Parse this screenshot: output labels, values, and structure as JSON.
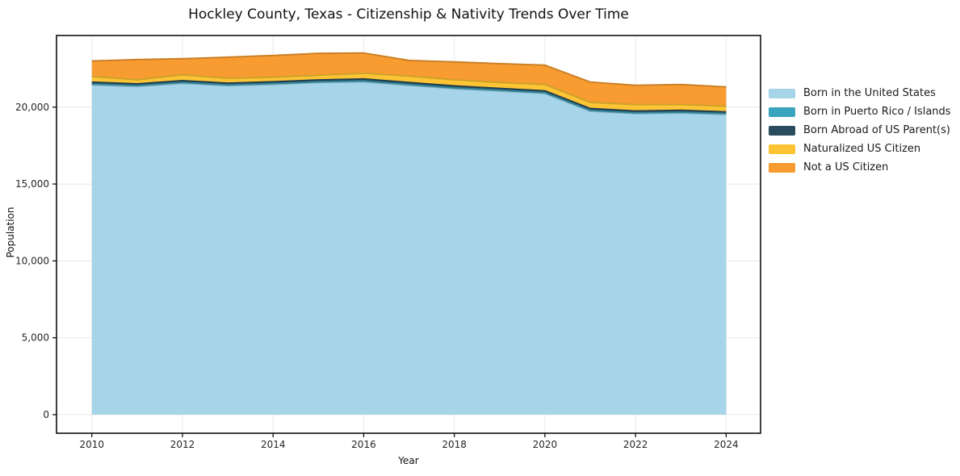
{
  "header": {
    "title": "Hockley County, Texas - Citizenship & Nativity Trends Over Time"
  },
  "chart_data": {
    "type": "area",
    "stacked": true,
    "title": "Hockley County, Texas - Citizenship & Nativity Trends Over Time",
    "xlabel": "Year",
    "ylabel": "Population",
    "x": [
      2010,
      2011,
      2012,
      2013,
      2014,
      2015,
      2016,
      2017,
      2018,
      2019,
      2020,
      2021,
      2022,
      2023,
      2024
    ],
    "series": [
      {
        "name": "Born in the United States",
        "color": "#a6d4e8",
        "values": [
          21450,
          21350,
          21550,
          21400,
          21480,
          21600,
          21650,
          21420,
          21200,
          21050,
          20890,
          19740,
          19580,
          19620,
          19530
        ]
      },
      {
        "name": "Born in Puerto Rico / Islands",
        "color": "#3aa3bd",
        "values": [
          50,
          50,
          50,
          50,
          50,
          50,
          50,
          50,
          50,
          50,
          50,
          50,
          50,
          50,
          50
        ]
      },
      {
        "name": "Born Abroad of US Parent(s)",
        "color": "#2b4c5f",
        "values": [
          120,
          110,
          120,
          110,
          120,
          120,
          130,
          130,
          130,
          120,
          120,
          120,
          120,
          120,
          110
        ]
      },
      {
        "name": "Naturalized US Citizen",
        "color": "#fdc434",
        "values": [
          380,
          270,
          380,
          320,
          290,
          310,
          380,
          420,
          400,
          380,
          410,
          400,
          420,
          380,
          370
        ]
      },
      {
        "name": "Not a US Citizen",
        "color": "#f89c31",
        "values": [
          1000,
          1310,
          1050,
          1370,
          1420,
          1420,
          1310,
          1020,
          1160,
          1230,
          1260,
          1320,
          1250,
          1300,
          1250
        ]
      }
    ],
    "totals": [
      23000,
      23090,
      23150,
      23250,
      23360,
      23500,
      23520,
      23040,
      22940,
      22830,
      22730,
      21630,
      21420,
      21420,
      21310
    ],
    "xticks": {
      "values": [
        2010,
        2012,
        2014,
        2016,
        2018,
        2020,
        2022,
        2024
      ],
      "labels": [
        "2010",
        "2012",
        "2014",
        "2016",
        "2018",
        "2020",
        "2022",
        "2024"
      ]
    },
    "yticks": {
      "values": [
        0,
        5000,
        10000,
        15000,
        20000
      ],
      "labels": [
        "0",
        "5,000",
        "10,000",
        "15,000",
        "20,000"
      ]
    },
    "xlim": [
      2009.22,
      2024.76
    ],
    "ylim": [
      -1210,
      24660
    ],
    "grid": true,
    "legend_position": "right"
  },
  "colors": {
    "grid": "#e8e8e8",
    "axis": "#000000",
    "tick_text": "#262626",
    "title_text": "#111111",
    "background": "#ffffff"
  }
}
